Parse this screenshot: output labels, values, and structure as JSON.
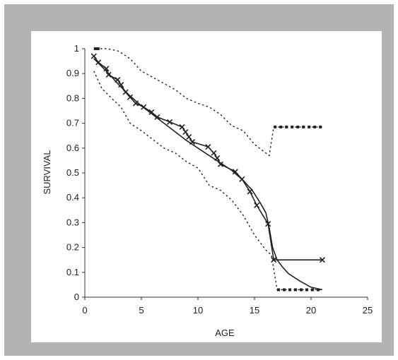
{
  "chart_data": {
    "type": "line",
    "xlabel": "AGE",
    "ylabel": "SURVIVAL",
    "xlim": [
      0,
      25
    ],
    "ylim": [
      0,
      1
    ],
    "xticks": [
      0,
      5,
      10,
      15,
      20,
      25
    ],
    "yticks": [
      0,
      0.1,
      0.2,
      0.3,
      0.4,
      0.5,
      0.6,
      0.7,
      0.8,
      0.9,
      1
    ],
    "grid": false,
    "legend": "none",
    "series": [
      {
        "style": "line with x markers",
        "color": "#222222",
        "x": [
          0.8,
          1.2,
          1.9,
          2.1,
          2.9,
          3.2,
          3.6,
          4.0,
          4.5,
          5.2,
          5.9,
          6.4,
          7.5,
          8.6,
          8.9,
          9.2,
          9.5,
          10.9,
          11.4,
          11.7,
          12.0,
          13.3,
          13.9,
          14.6,
          15.2,
          16.2,
          16.7,
          21.0
        ],
        "y": [
          0.97,
          0.945,
          0.92,
          0.895,
          0.875,
          0.855,
          0.825,
          0.805,
          0.78,
          0.765,
          0.745,
          0.725,
          0.705,
          0.685,
          0.665,
          0.645,
          0.625,
          0.605,
          0.58,
          0.56,
          0.535,
          0.505,
          0.475,
          0.425,
          0.37,
          0.295,
          0.15,
          0.15
        ]
      },
      {
        "style": "smooth solid line",
        "color": "#222222",
        "x": [
          0.8,
          2.0,
          3.0,
          4.0,
          5.0,
          6.0,
          7.0,
          8.0,
          9.0,
          10.0,
          11.0,
          12.0,
          13.0,
          14.0,
          14.8,
          15.5,
          16.0,
          16.3,
          16.6,
          17.0,
          17.5,
          18.0,
          19.0,
          20.0,
          21.0
        ],
        "y": [
          0.96,
          0.905,
          0.855,
          0.81,
          0.77,
          0.735,
          0.7,
          0.665,
          0.63,
          0.6,
          0.57,
          0.54,
          0.51,
          0.47,
          0.43,
          0.38,
          0.34,
          0.28,
          0.2,
          0.15,
          0.12,
          0.095,
          0.065,
          0.04,
          0.03
        ]
      },
      {
        "style": "dotted upper band",
        "color": "#222222",
        "x": [
          1.0,
          2.0,
          3.0,
          4.0,
          5.0,
          6.0,
          7.0,
          8.0,
          9.0,
          10.0,
          11.0,
          12.0,
          13.0,
          14.0,
          15.0,
          16.0,
          16.3,
          16.7,
          17.5,
          18.5,
          19.5,
          21.0
        ],
        "y": [
          1.0,
          1.0,
          0.99,
          0.96,
          0.91,
          0.885,
          0.86,
          0.835,
          0.8,
          0.78,
          0.765,
          0.735,
          0.69,
          0.67,
          0.615,
          0.58,
          0.57,
          0.685,
          0.685,
          0.685,
          0.685,
          0.685
        ]
      },
      {
        "style": "dotted lower band",
        "color": "#222222",
        "x": [
          0.8,
          1.5,
          2.5,
          3.2,
          4.0,
          5.0,
          6.0,
          7.0,
          8.0,
          9.0,
          10.0,
          11.0,
          12.0,
          13.0,
          14.0,
          15.0,
          16.0,
          16.5,
          17.0,
          18.0,
          19.0,
          20.0,
          21.0
        ],
        "y": [
          0.91,
          0.84,
          0.795,
          0.765,
          0.7,
          0.67,
          0.635,
          0.6,
          0.58,
          0.545,
          0.52,
          0.45,
          0.43,
          0.39,
          0.33,
          0.25,
          0.19,
          0.17,
          0.03,
          0.03,
          0.03,
          0.03,
          0.03
        ]
      }
    ]
  }
}
